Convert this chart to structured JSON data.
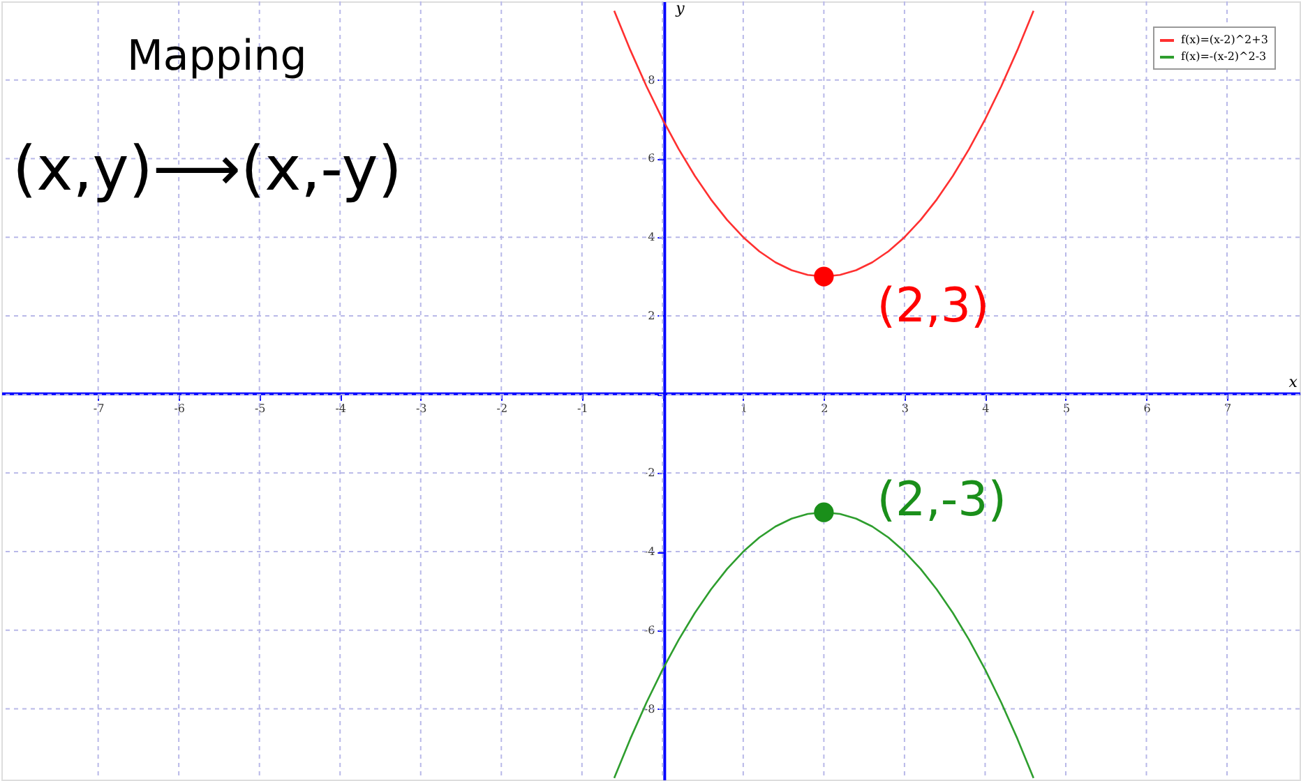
{
  "chart_data": {
    "type": "line",
    "xlabel": "x",
    "ylabel": "y",
    "xlim": [
      -8.2,
      7.9
    ],
    "ylim": [
      -9.8,
      10
    ],
    "xticks": [
      -7,
      -6,
      -5,
      -4,
      -3,
      -2,
      -1,
      {
        "value": 0,
        "label": null
      },
      1,
      2,
      3,
      4,
      5,
      6,
      7
    ],
    "yticks": [
      -8,
      -6,
      -4,
      -2,
      {
        "value": 0,
        "label": null
      },
      2,
      4,
      6,
      8
    ],
    "grid": true,
    "legend": "top right",
    "series": [
      {
        "name": "f(x)=(x-2)^2+3",
        "color": "#ff3030",
        "x": [
          -0.6,
          -0.4,
          -0.2,
          0,
          0.2,
          0.4,
          0.6,
          0.8,
          1,
          1.2,
          1.4,
          1.6,
          1.8,
          2,
          2.2,
          2.4,
          2.6,
          2.8,
          3,
          3.2,
          3.4,
          3.6,
          3.8,
          4,
          4.2,
          4.4,
          4.6
        ],
        "values": [
          9.76,
          8.76,
          7.84,
          7,
          6.24,
          5.56,
          4.96,
          4.44,
          4,
          3.64,
          3.36,
          3.16,
          3.04,
          3,
          3.04,
          3.16,
          3.36,
          3.64,
          4,
          4.44,
          4.96,
          5.56,
          6.24,
          7,
          7.84,
          8.76,
          9.76
        ]
      },
      {
        "name": "f(x)=-(x-2)^2-3",
        "color": "#2e9e2e",
        "x": [
          -0.6,
          -0.4,
          -0.2,
          0,
          0.2,
          0.4,
          0.6,
          0.8,
          1,
          1.2,
          1.4,
          1.6,
          1.8,
          2,
          2.2,
          2.4,
          2.6,
          2.8,
          3,
          3.2,
          3.4,
          3.6,
          3.8,
          4,
          4.2,
          4.4,
          4.6
        ],
        "values": [
          -9.76,
          -8.76,
          -7.84,
          -7,
          -6.24,
          -5.56,
          -4.96,
          -4.44,
          -4,
          -3.64,
          -3.36,
          -3.16,
          -3.04,
          -3,
          -3.04,
          -3.16,
          -3.36,
          -3.64,
          -4,
          -4.44,
          -4.96,
          -5.56,
          -6.24,
          -7,
          -7.84,
          -8.76,
          -9.76
        ]
      },
      {
        "color": "#ff0000",
        "type": "scatter",
        "marker": "circle",
        "x": [
          2
        ],
        "values": [
          3
        ]
      },
      {
        "color": "#1a8f1a",
        "type": "scatter",
        "marker": "circle",
        "x": [
          2
        ],
        "values": [
          -3
        ]
      }
    ],
    "annotations": [
      "Mapping",
      "(x,y)⟶(x,-y)",
      {
        "text": "(2,3)",
        "x": 2,
        "y": 3
      },
      {
        "text": "(2,-3)",
        "x": 2,
        "y": -3
      }
    ]
  }
}
